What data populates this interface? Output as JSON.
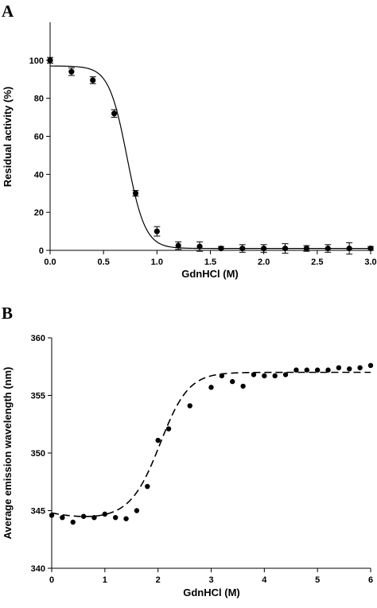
{
  "chart_data": [
    {
      "panel": "A",
      "type": "scatter",
      "xlabel": "GdnHCl (M)",
      "ylabel": "Residual activity (%)",
      "xlim": [
        0,
        3.0
      ],
      "ylim": [
        0,
        120
      ],
      "xticks": [
        0.0,
        0.5,
        1.0,
        1.5,
        2.0,
        2.5,
        3.0
      ],
      "xtick_labels": [
        "0.0",
        "0.5",
        "1.0",
        "1.5",
        "2.0",
        "2.5",
        "3.0"
      ],
      "yticks": [
        0,
        20,
        40,
        60,
        80,
        100
      ],
      "ytick_labels": [
        "0",
        "20",
        "40",
        "60",
        "80",
        "100"
      ],
      "grid": false,
      "marker": "circle",
      "error_bars": true,
      "fit_line": "solid",
      "fit": {
        "model": "sigmoid",
        "top": 97,
        "bottom": 1,
        "midpoint": 0.72,
        "slope": 0.085
      },
      "points": [
        {
          "x": 0.0,
          "y": 100,
          "err": 1.5
        },
        {
          "x": 0.2,
          "y": 94,
          "err": 2.0
        },
        {
          "x": 0.4,
          "y": 89.5,
          "err": 1.8
        },
        {
          "x": 0.6,
          "y": 72,
          "err": 2.0
        },
        {
          "x": 0.8,
          "y": 30,
          "err": 1.5
        },
        {
          "x": 1.0,
          "y": 10,
          "err": 2.5
        },
        {
          "x": 1.2,
          "y": 2.5,
          "err": 2.0
        },
        {
          "x": 1.4,
          "y": 2.0,
          "err": 2.5
        },
        {
          "x": 1.6,
          "y": 1.0,
          "err": 1.0
        },
        {
          "x": 1.8,
          "y": 1.0,
          "err": 2.0
        },
        {
          "x": 2.0,
          "y": 1.0,
          "err": 2.0
        },
        {
          "x": 2.2,
          "y": 1.0,
          "err": 2.5
        },
        {
          "x": 2.4,
          "y": 1.0,
          "err": 1.5
        },
        {
          "x": 2.6,
          "y": 1.0,
          "err": 2.0
        },
        {
          "x": 2.8,
          "y": 1.0,
          "err": 3.0
        },
        {
          "x": 3.0,
          "y": 1.0,
          "err": 1.0
        }
      ]
    },
    {
      "panel": "B",
      "type": "scatter",
      "xlabel": "GdnHCl (M)",
      "ylabel": "Average emission wavelength (nm)",
      "xlim": [
        0,
        6
      ],
      "ylim": [
        340,
        360
      ],
      "xticks": [
        0,
        1,
        2,
        3,
        4,
        5,
        6
      ],
      "xtick_labels": [
        "0",
        "1",
        "2",
        "3",
        "4",
        "5",
        "6"
      ],
      "yticks": [
        340,
        345,
        350,
        355,
        360
      ],
      "ytick_labels": [
        "340",
        "345",
        "350",
        "355",
        "360"
      ],
      "grid": false,
      "marker": "circle",
      "error_bars": false,
      "fit_line": "dashed",
      "fit": {
        "model": "two-state",
        "baseline_low": 344.8,
        "baseline_low_slope": -0.95,
        "baseline_low_curve": 0.58,
        "baseline_high": 357.0,
        "midpoint": 2.07,
        "slope": 0.27
      },
      "points": [
        {
          "x": 0.0,
          "y": 344.6
        },
        {
          "x": 0.2,
          "y": 344.4
        },
        {
          "x": 0.4,
          "y": 344.0
        },
        {
          "x": 0.6,
          "y": 344.5
        },
        {
          "x": 0.8,
          "y": 344.4
        },
        {
          "x": 1.0,
          "y": 344.7
        },
        {
          "x": 1.2,
          "y": 344.4
        },
        {
          "x": 1.4,
          "y": 344.3
        },
        {
          "x": 1.6,
          "y": 345.0
        },
        {
          "x": 1.8,
          "y": 347.1
        },
        {
          "x": 2.0,
          "y": 351.1
        },
        {
          "x": 2.2,
          "y": 352.1
        },
        {
          "x": 2.6,
          "y": 354.1
        },
        {
          "x": 3.0,
          "y": 355.7
        },
        {
          "x": 3.2,
          "y": 356.7
        },
        {
          "x": 3.4,
          "y": 356.2
        },
        {
          "x": 3.6,
          "y": 355.8
        },
        {
          "x": 3.8,
          "y": 356.8
        },
        {
          "x": 4.0,
          "y": 356.7
        },
        {
          "x": 4.2,
          "y": 356.7
        },
        {
          "x": 4.4,
          "y": 356.8
        },
        {
          "x": 4.6,
          "y": 357.2
        },
        {
          "x": 4.8,
          "y": 357.2
        },
        {
          "x": 5.0,
          "y": 357.2
        },
        {
          "x": 5.2,
          "y": 357.2
        },
        {
          "x": 5.4,
          "y": 357.4
        },
        {
          "x": 5.6,
          "y": 357.3
        },
        {
          "x": 5.8,
          "y": 357.4
        },
        {
          "x": 6.0,
          "y": 357.6
        }
      ]
    }
  ]
}
